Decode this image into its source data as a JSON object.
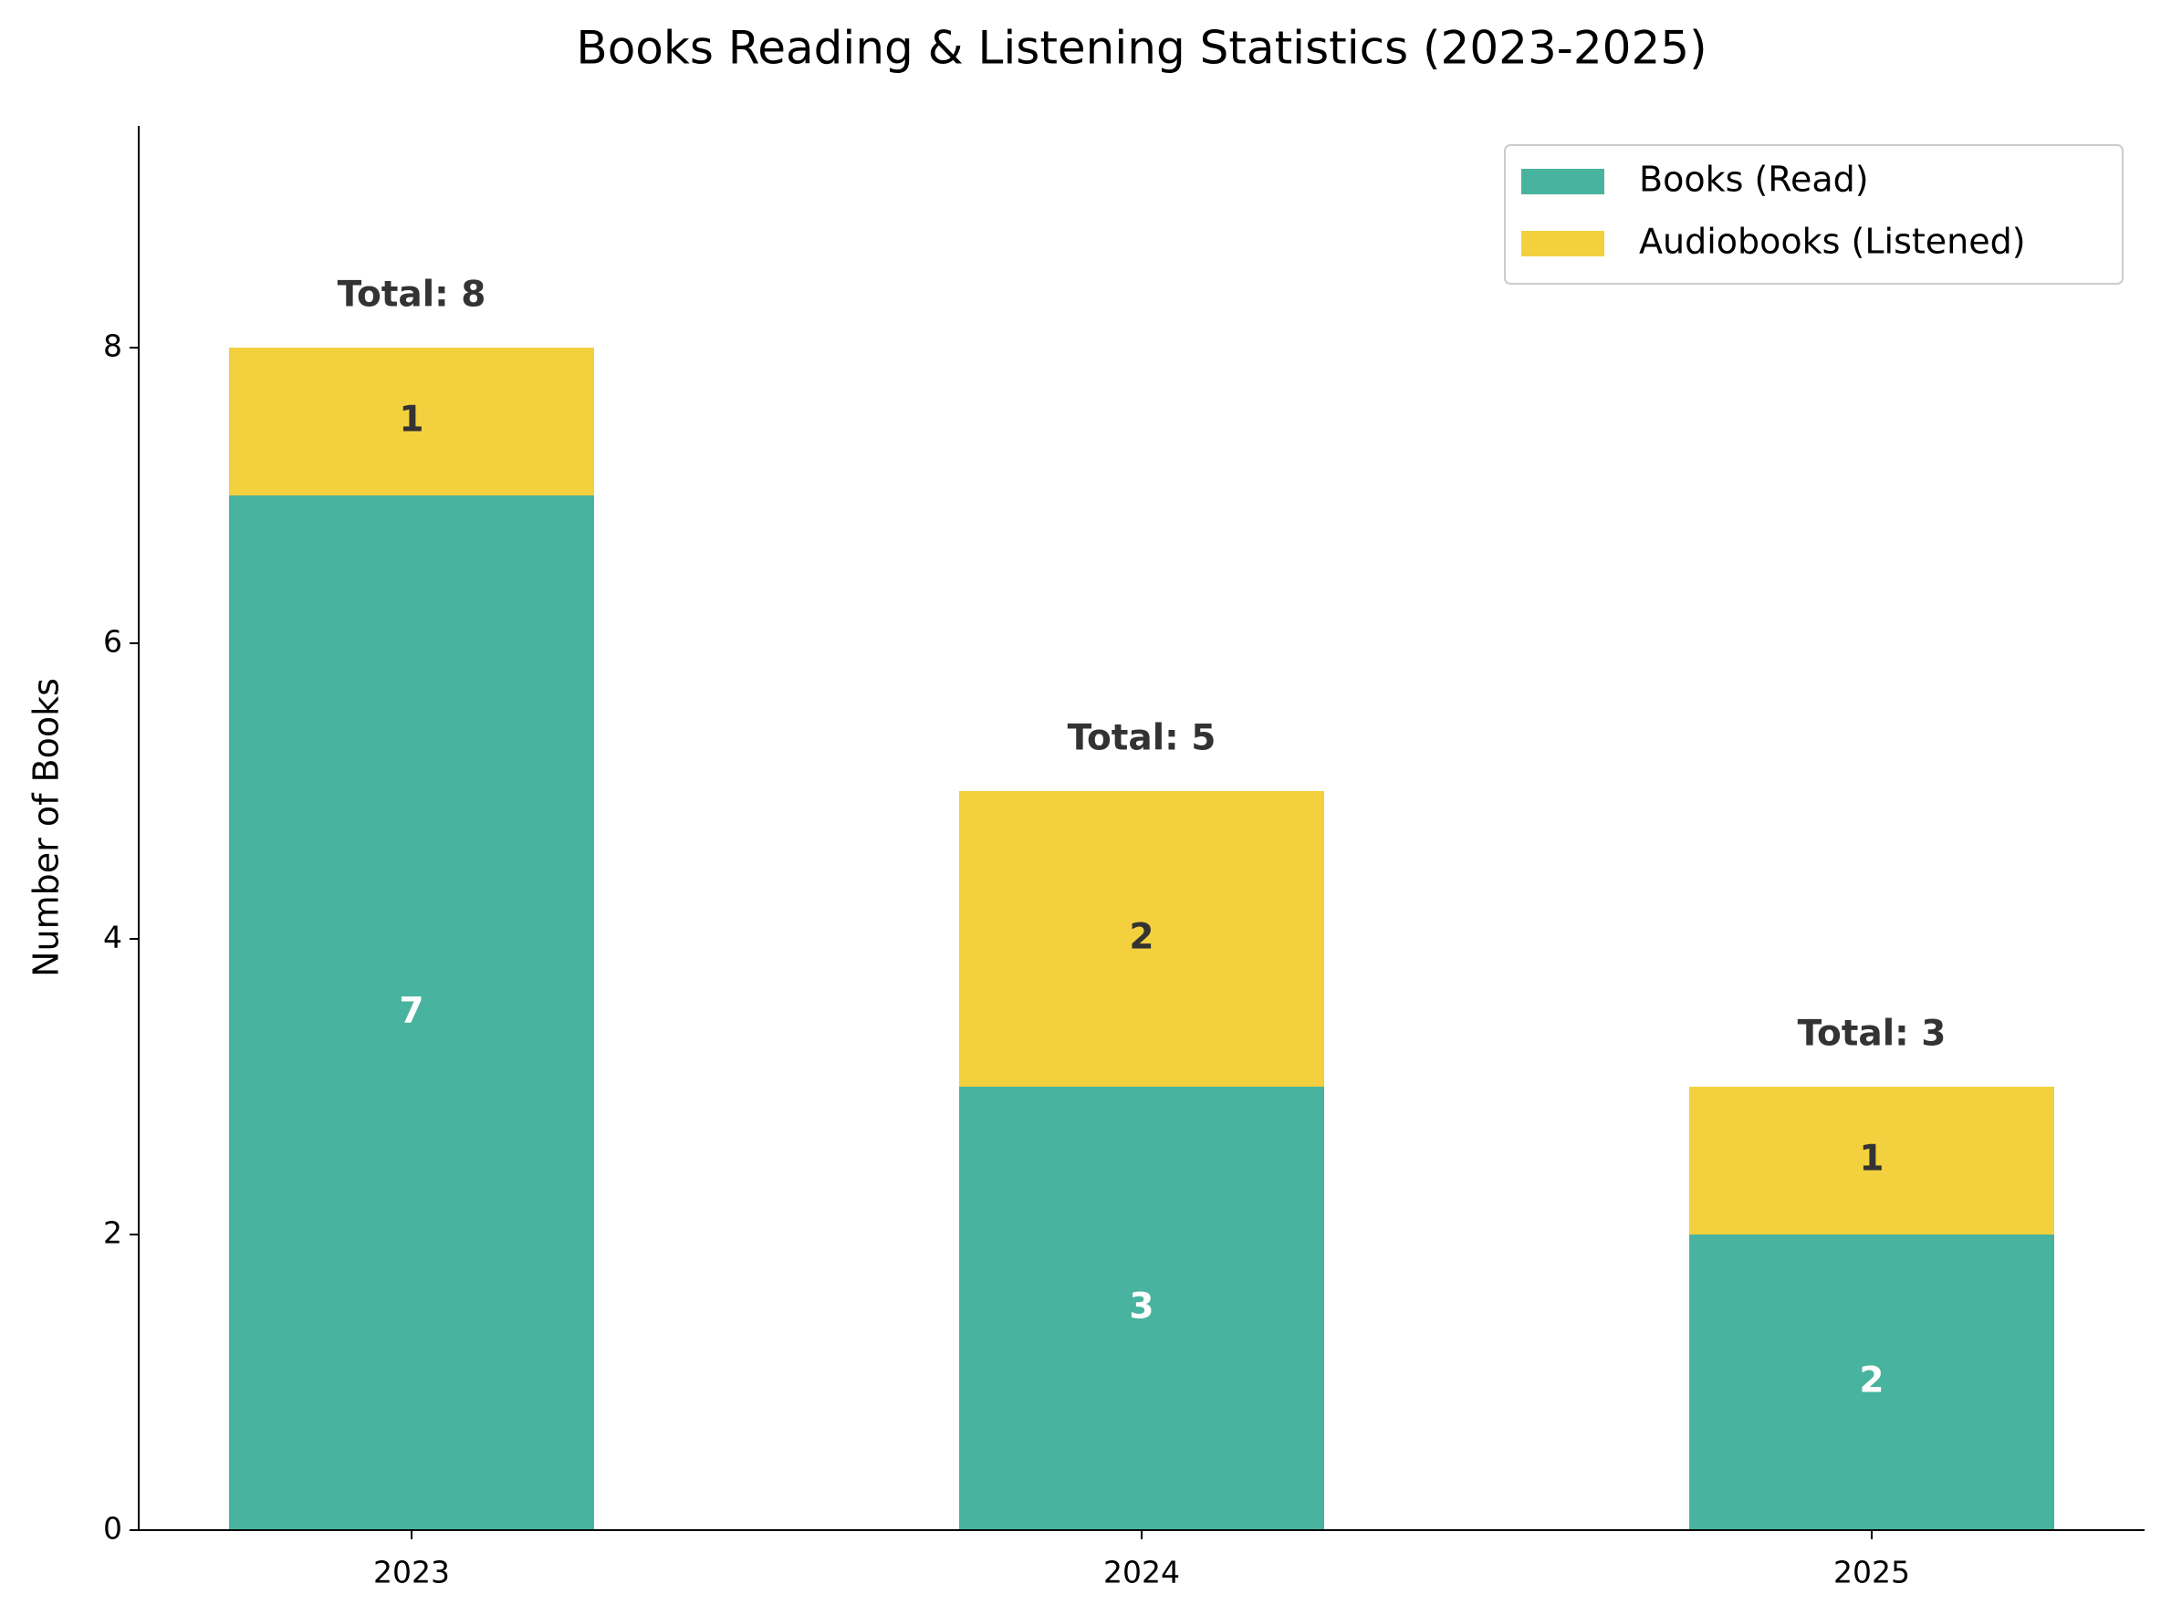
{
  "chart_data": {
    "type": "stacked_bar",
    "title": "Books Reading & Listening Statistics (2023-2025)",
    "y_label": "Number of Books",
    "categories": [
      "2023",
      "2024",
      "2025"
    ],
    "series": [
      {
        "name": "Books (Read)",
        "color": "#48b39e",
        "label_color": "#ffffff",
        "values": [
          7,
          3,
          2
        ]
      },
      {
        "name": "Audiobooks (Listened)",
        "color": "#f3d03e",
        "label_color": "#333333",
        "values": [
          1,
          2,
          1
        ]
      }
    ],
    "annotations": [
      "Total: 8",
      "Total: 5",
      "Total: 3"
    ],
    "ylim": [
      0,
      9.5
    ],
    "yticks": [
      0,
      2,
      4,
      6,
      8
    ],
    "grid": false,
    "legend": "upper right"
  }
}
